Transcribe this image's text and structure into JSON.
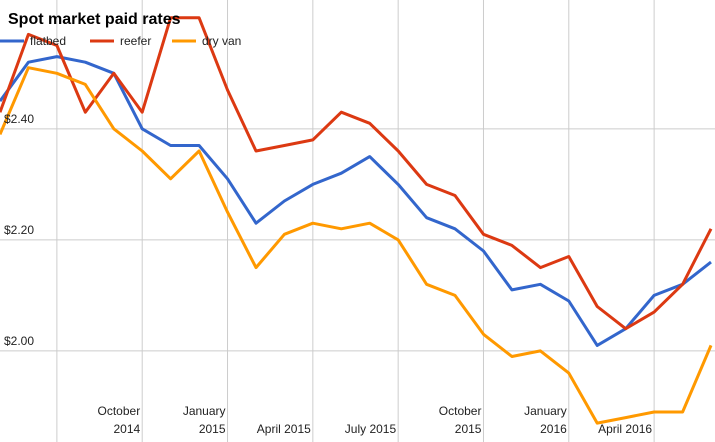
{
  "chart_data": {
    "type": "line",
    "title": "Spot market paid rates",
    "categories": [
      null,
      null,
      null,
      null,
      null,
      "October 2014",
      null,
      null,
      "January 2015",
      null,
      null,
      "April 2015",
      null,
      null,
      "July 2015",
      null,
      null,
      "October 2015",
      null,
      null,
      "January 2016",
      null,
      null,
      "April 2016",
      null,
      null
    ],
    "series": [
      {
        "name": "flatbed",
        "color": "#3366cc",
        "values": [
          2.45,
          2.52,
          2.53,
          2.52,
          2.5,
          2.4,
          2.37,
          2.37,
          2.31,
          2.23,
          2.27,
          2.3,
          2.32,
          2.35,
          2.3,
          2.24,
          2.22,
          2.18,
          2.11,
          2.12,
          2.09,
          2.01,
          2.04,
          2.1,
          2.12,
          2.16
        ]
      },
      {
        "name": "reefer",
        "color": "#dc3912",
        "values": [
          2.43,
          2.57,
          2.55,
          2.43,
          2.5,
          2.43,
          2.6,
          2.6,
          2.47,
          2.36,
          2.37,
          2.38,
          2.43,
          2.41,
          2.36,
          2.3,
          2.28,
          2.21,
          2.19,
          2.15,
          2.17,
          2.08,
          2.04,
          2.07,
          2.12,
          2.22
        ]
      },
      {
        "name": "dry van",
        "color": "#ff9900",
        "values": [
          2.39,
          2.51,
          2.5,
          2.48,
          2.4,
          2.36,
          2.31,
          2.36,
          2.25,
          2.15,
          2.21,
          2.23,
          2.22,
          2.23,
          2.2,
          2.12,
          2.1,
          2.03,
          1.99,
          2.0,
          1.96,
          1.87,
          1.88,
          1.89,
          1.89,
          2.01
        ]
      }
    ],
    "ylim": [
      1.836,
      2.632
    ],
    "yticks": [
      {
        "value": 2.0,
        "label": "$2.00"
      },
      {
        "value": 2.2,
        "label": "$2.20"
      },
      {
        "value": 2.4,
        "label": "$2.40"
      }
    ],
    "grid": true,
    "legend": "top-left"
  }
}
